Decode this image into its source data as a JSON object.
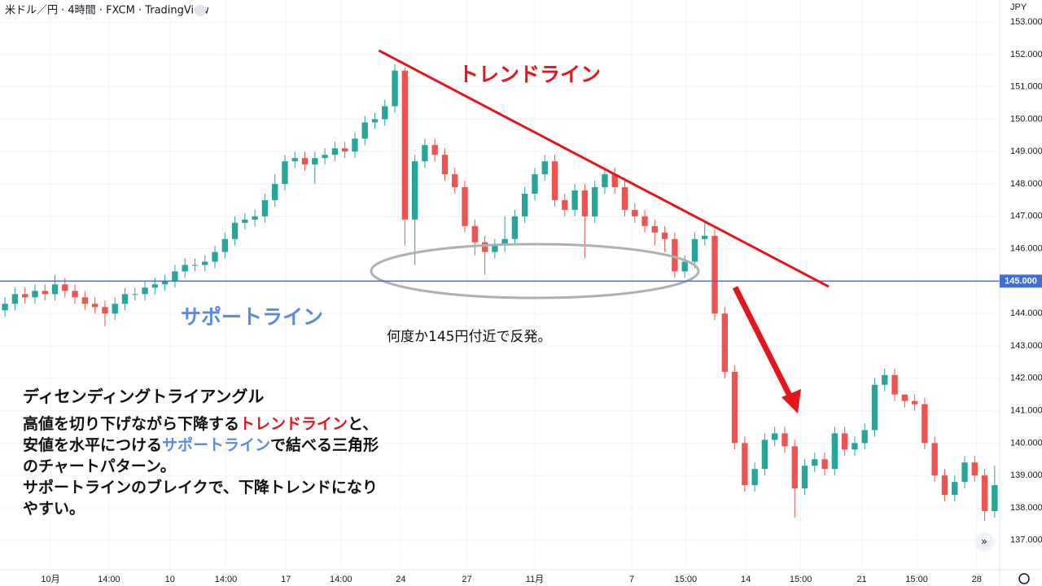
{
  "chart_data": {
    "type": "candlestick",
    "title": "米ドル／円 · 4時間 · FXCM · TradingView",
    "currency": "JPY",
    "up_color": "#26a69a",
    "down_color": "#ef5350",
    "xlim": [
      0,
      100
    ],
    "xticks": [
      {
        "value": 5.05,
        "label": "10月"
      },
      {
        "value": 10.9,
        "label": "14:00"
      },
      {
        "value": 17.0,
        "label": "10"
      },
      {
        "value": 22.6,
        "label": "14:00"
      },
      {
        "value": 28.6,
        "label": "17"
      },
      {
        "value": 34.1,
        "label": "14:00"
      },
      {
        "value": 40.1,
        "label": "24"
      },
      {
        "value": 46.7,
        "label": "27"
      },
      {
        "value": 53.5,
        "label": "11月"
      },
      {
        "value": 63.2,
        "label": "7"
      },
      {
        "value": 68.6,
        "label": "15:00"
      },
      {
        "value": 74.6,
        "label": "14"
      },
      {
        "value": 80.1,
        "label": "15:00"
      },
      {
        "value": 86.2,
        "label": "21"
      },
      {
        "value": 91.7,
        "label": "15:00"
      },
      {
        "value": 97.7,
        "label": "28"
      }
    ],
    "ylim": [
      136.09,
      153.68
    ],
    "yticks": [
      {
        "value": 137,
        "label": "137.000"
      },
      {
        "value": 138,
        "label": "138.000"
      },
      {
        "value": 139,
        "label": "139.000"
      },
      {
        "value": 140,
        "label": "140.000"
      },
      {
        "value": 141,
        "label": "141.000"
      },
      {
        "value": 142,
        "label": "142.000"
      },
      {
        "value": 143,
        "label": "143.000"
      },
      {
        "value": 144,
        "label": "144.000"
      },
      {
        "value": 145,
        "label": "145.000"
      },
      {
        "value": 146,
        "label": "146.000"
      },
      {
        "value": 147,
        "label": "147.000"
      },
      {
        "value": 148,
        "label": "148.000"
      },
      {
        "value": 149,
        "label": "149.000"
      },
      {
        "value": 150,
        "label": "150.000"
      },
      {
        "value": 151,
        "label": "151.000"
      },
      {
        "value": 152,
        "label": "152.000"
      },
      {
        "value": 153,
        "label": "153.000"
      }
    ],
    "grid": true,
    "candles": {
      "open": [
        144.1,
        144.3,
        144.6,
        144.5,
        144.7,
        144.6,
        144.9,
        144.7,
        144.5,
        144.3,
        144.2,
        144.0,
        144.3,
        144.6,
        144.6,
        144.8,
        144.9,
        145.0,
        145.3,
        145.5,
        145.5,
        145.6,
        145.9,
        146.3,
        146.8,
        146.9,
        147.0,
        147.5,
        148.0,
        148.7,
        148.8,
        148.6,
        148.8,
        148.9,
        149.1,
        149.0,
        149.4,
        149.9,
        150.0,
        150.4,
        151.5,
        146.9,
        148.7,
        149.2,
        148.9,
        148.3,
        147.9,
        146.7,
        146.2,
        145.9,
        146.1,
        146.3,
        147.0,
        147.7,
        148.3,
        148.7,
        147.5,
        147.2,
        147.8,
        147.0,
        147.9,
        148.3,
        147.9,
        147.2,
        147.0,
        146.7,
        146.5,
        146.3,
        145.3,
        145.6,
        146.3,
        146.4,
        144.0,
        142.2,
        140.0,
        138.7,
        139.2,
        140.1,
        140.3,
        139.9,
        138.6,
        139.3,
        139.5,
        139.2,
        140.3,
        139.8,
        140.0,
        140.4,
        141.8,
        142.1,
        141.5,
        141.3,
        141.2,
        140.0,
        139.0,
        138.4,
        138.8,
        139.4,
        139.0,
        137.9
      ],
      "high": [
        144.5,
        144.8,
        144.8,
        144.9,
        144.9,
        145.2,
        145.1,
        144.9,
        144.7,
        144.5,
        144.4,
        144.5,
        144.8,
        144.8,
        145.0,
        145.1,
        145.2,
        145.5,
        145.7,
        145.7,
        145.8,
        146.1,
        146.5,
        147.0,
        147.1,
        147.2,
        147.7,
        148.3,
        148.9,
        149.0,
        149.0,
        149.0,
        149.1,
        149.3,
        149.3,
        149.6,
        150.1,
        150.2,
        150.6,
        151.7,
        151.6,
        148.9,
        149.4,
        149.4,
        149.1,
        148.5,
        148.1,
        146.9,
        146.4,
        146.3,
        147.0,
        147.2,
        147.9,
        148.5,
        148.9,
        148.9,
        147.7,
        148.0,
        148.0,
        148.1,
        148.5,
        148.5,
        148.1,
        147.4,
        147.2,
        146.9,
        146.7,
        146.5,
        145.8,
        146.5,
        146.8,
        146.6,
        144.2,
        142.4,
        140.2,
        139.4,
        140.3,
        140.5,
        140.5,
        140.1,
        139.5,
        139.7,
        139.7,
        140.5,
        140.5,
        140.2,
        140.6,
        142.0,
        142.3,
        142.3,
        141.5,
        141.5,
        141.4,
        140.2,
        139.2,
        139.0,
        139.6,
        139.6,
        139.2,
        139.3
      ],
      "low": [
        143.9,
        144.1,
        144.3,
        144.3,
        144.4,
        144.4,
        144.5,
        144.3,
        144.1,
        144.0,
        143.6,
        143.8,
        144.1,
        144.4,
        144.4,
        144.6,
        144.7,
        144.8,
        145.1,
        145.3,
        145.3,
        145.4,
        145.7,
        146.1,
        146.6,
        146.7,
        146.8,
        147.3,
        147.8,
        148.5,
        148.4,
        148.0,
        148.6,
        148.7,
        148.8,
        148.8,
        149.2,
        149.7,
        149.8,
        150.2,
        146.1,
        145.5,
        148.5,
        148.7,
        148.1,
        147.7,
        146.5,
        145.8,
        145.2,
        145.7,
        145.9,
        146.1,
        146.8,
        147.5,
        148.1,
        147.3,
        147.0,
        147.0,
        145.7,
        146.8,
        147.7,
        147.7,
        147.0,
        146.8,
        146.5,
        146.1,
        145.9,
        145.1,
        145.1,
        145.4,
        146.1,
        143.8,
        142.0,
        139.8,
        138.5,
        138.5,
        139.0,
        139.9,
        139.7,
        137.7,
        138.4,
        139.1,
        139.0,
        139.0,
        139.6,
        139.6,
        139.8,
        140.2,
        141.6,
        141.3,
        141.1,
        141.0,
        139.8,
        138.8,
        138.2,
        138.2,
        138.6,
        138.8,
        137.6,
        137.7
      ],
      "close": [
        144.3,
        144.6,
        144.5,
        144.7,
        144.6,
        144.9,
        144.7,
        144.5,
        144.3,
        144.2,
        144.0,
        144.3,
        144.6,
        144.6,
        144.8,
        144.9,
        145.0,
        145.3,
        145.5,
        145.5,
        145.6,
        145.9,
        146.3,
        146.8,
        146.9,
        147.0,
        147.5,
        148.0,
        148.7,
        148.8,
        148.6,
        148.8,
        148.9,
        149.1,
        149.0,
        149.4,
        149.9,
        150.0,
        150.4,
        151.5,
        146.9,
        148.7,
        149.2,
        148.9,
        148.3,
        147.9,
        146.7,
        146.2,
        145.9,
        146.1,
        146.3,
        147.0,
        147.7,
        148.3,
        148.7,
        147.5,
        147.2,
        147.8,
        147.0,
        147.9,
        148.3,
        147.9,
        147.2,
        147.0,
        146.7,
        146.5,
        146.3,
        145.3,
        145.6,
        146.3,
        146.4,
        144.0,
        142.2,
        140.0,
        138.7,
        139.2,
        140.1,
        140.3,
        139.9,
        138.6,
        139.3,
        139.5,
        139.2,
        140.3,
        139.8,
        140.0,
        140.4,
        141.8,
        142.1,
        141.5,
        141.3,
        141.2,
        140.0,
        139.0,
        138.4,
        138.8,
        139.4,
        139.0,
        137.9,
        138.7
      ]
    },
    "support_level": {
      "value": 145,
      "label": "145.000",
      "color": "#3d6fd6"
    },
    "trendline": {
      "x": [
        37.9,
        82.9
      ],
      "y": [
        152.12,
        144.83
      ],
      "color": "#e8141c"
    },
    "annotations": {
      "trendline_label": "トレンドライン",
      "support_label": "サポートライン",
      "bounce_note": "何度か145円付近で反発。",
      "pattern_name": "ディセンディングトライアングル",
      "description": [
        [
          "高値を切り下げながら下降する",
          "トレンドライン",
          "と、"
        ],
        [
          "安値を水平につける",
          "サポートライン",
          "で結べる三角形"
        ],
        [
          "のチャートパターン。"
        ],
        [
          "サポートラインのブレイクで、下降トレンドになり"
        ],
        [
          "やすい。"
        ]
      ]
    }
  }
}
